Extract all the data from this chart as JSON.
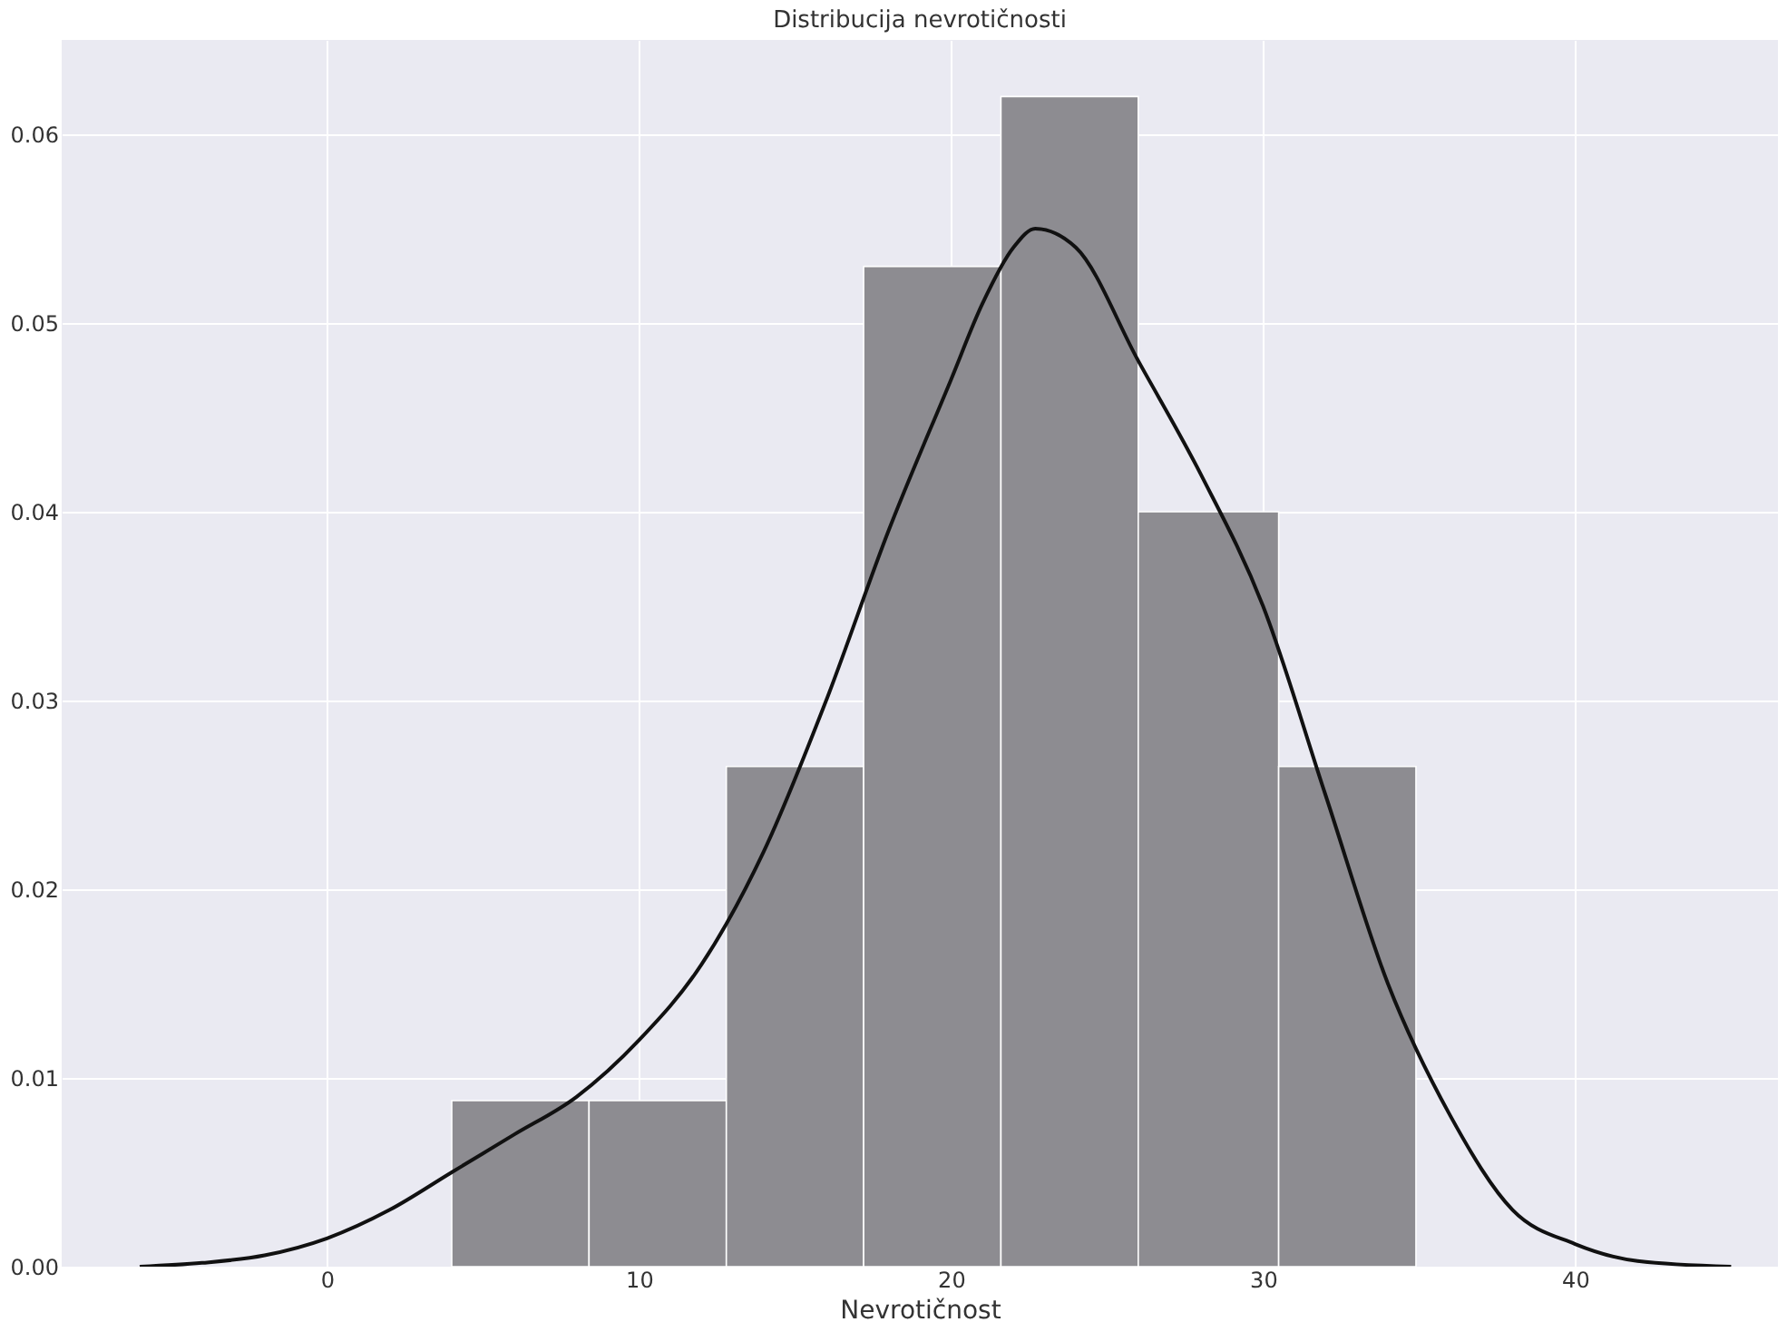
{
  "chart_data": {
    "type": "histogram",
    "title": "Distribucija nevrotičnosti",
    "xlabel": "Nevrotičnost",
    "bins": [
      4.0,
      8.4,
      12.8,
      17.2,
      21.6,
      26.0,
      30.5,
      34.9
    ],
    "values": [
      0.0088,
      0.0088,
      0.0265,
      0.053,
      0.062,
      0.04,
      0.0265
    ],
    "color": "#8d8c91",
    "series": [
      {
        "type": "line",
        "color": "#111111",
        "x": [
          -6,
          -4,
          -2,
          0,
          2,
          4,
          6,
          8,
          10,
          12,
          14,
          16,
          18,
          20,
          21,
          22,
          22.7,
          24,
          26,
          28,
          30,
          32,
          34,
          36,
          38,
          40,
          42,
          45
        ],
        "values": [
          0.0,
          0.0002,
          0.0006,
          0.0015,
          0.003,
          0.005,
          0.007,
          0.009,
          0.012,
          0.016,
          0.022,
          0.03,
          0.039,
          0.047,
          0.051,
          0.054,
          0.055,
          0.054,
          0.048,
          0.042,
          0.035,
          0.025,
          0.015,
          0.008,
          0.003,
          0.0012,
          0.0003,
          0.0
        ]
      }
    ],
    "xlim": [
      -8.5,
      46.5
    ],
    "ylim": [
      0,
      0.065
    ],
    "xticks": [
      0,
      10,
      20,
      30,
      40
    ],
    "yticks": [
      {
        "value": 0,
        "label": "0.00"
      },
      {
        "value": 0.01,
        "label": "0.01"
      },
      {
        "value": 0.02,
        "label": "0.02"
      },
      {
        "value": 0.03,
        "label": "0.03"
      },
      {
        "value": 0.04,
        "label": "0.04"
      },
      {
        "value": 0.05,
        "label": "0.05"
      },
      {
        "value": 0.06,
        "label": "0.06"
      }
    ],
    "grid": true
  }
}
